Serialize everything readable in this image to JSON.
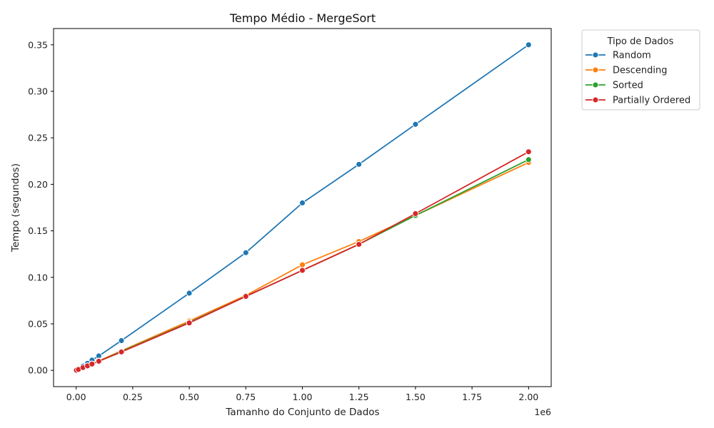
{
  "chart_data": {
    "type": "line",
    "title": "Tempo Médio - MergeSort",
    "xlabel": "Tamanho do Conjunto de Dados",
    "ylabel": "Tempo (segundos)",
    "x_offset_label": "1e6",
    "xlim": [
      -100000,
      2100000
    ],
    "ylim": [
      -0.0175,
      0.3675
    ],
    "x_ticks": [
      0,
      250000,
      500000,
      750000,
      1000000,
      1250000,
      1500000,
      1750000,
      2000000
    ],
    "x_tick_labels": [
      "0.00",
      "0.25",
      "0.50",
      "0.75",
      "1.00",
      "1.25",
      "1.50",
      "1.75",
      "2.00"
    ],
    "y_ticks": [
      0,
      0.05,
      0.1,
      0.15,
      0.2,
      0.25,
      0.3,
      0.35
    ],
    "y_tick_labels": [
      "0.00",
      "0.05",
      "0.10",
      "0.15",
      "0.20",
      "0.25",
      "0.30",
      "0.35"
    ],
    "grid": false,
    "legend": {
      "title": "Tipo de Dados",
      "placement": "outside-top-right"
    },
    "x": [
      1000,
      10000,
      30000,
      50000,
      70000,
      100000,
      200000,
      500000,
      750000,
      1000000,
      1250000,
      1500000,
      2000000
    ],
    "series": [
      {
        "name": "Random",
        "color": "#1f77b4",
        "values": [
          0.0001,
          0.0015,
          0.0045,
          0.0075,
          0.011,
          0.0155,
          0.032,
          0.083,
          0.1265,
          0.18,
          0.2215,
          0.2645,
          0.35
        ]
      },
      {
        "name": "Descending",
        "color": "#ff7f0e",
        "values": [
          0.0001,
          0.001,
          0.003,
          0.005,
          0.007,
          0.0102,
          0.021,
          0.053,
          0.0805,
          0.1135,
          0.1385,
          0.1665,
          0.2235
        ]
      },
      {
        "name": "Sorted",
        "color": "#2ca02c",
        "values": [
          0.0001,
          0.001,
          0.003,
          0.005,
          0.007,
          0.0098,
          0.0203,
          0.0515,
          0.0795,
          0.1075,
          0.1355,
          0.1665,
          0.2265
        ]
      },
      {
        "name": "Partially Ordered",
        "color": "#d62728",
        "values": [
          0.0001,
          0.001,
          0.003,
          0.0048,
          0.0068,
          0.0098,
          0.0198,
          0.051,
          0.0795,
          0.1075,
          0.1355,
          0.1685,
          0.235
        ]
      }
    ]
  }
}
